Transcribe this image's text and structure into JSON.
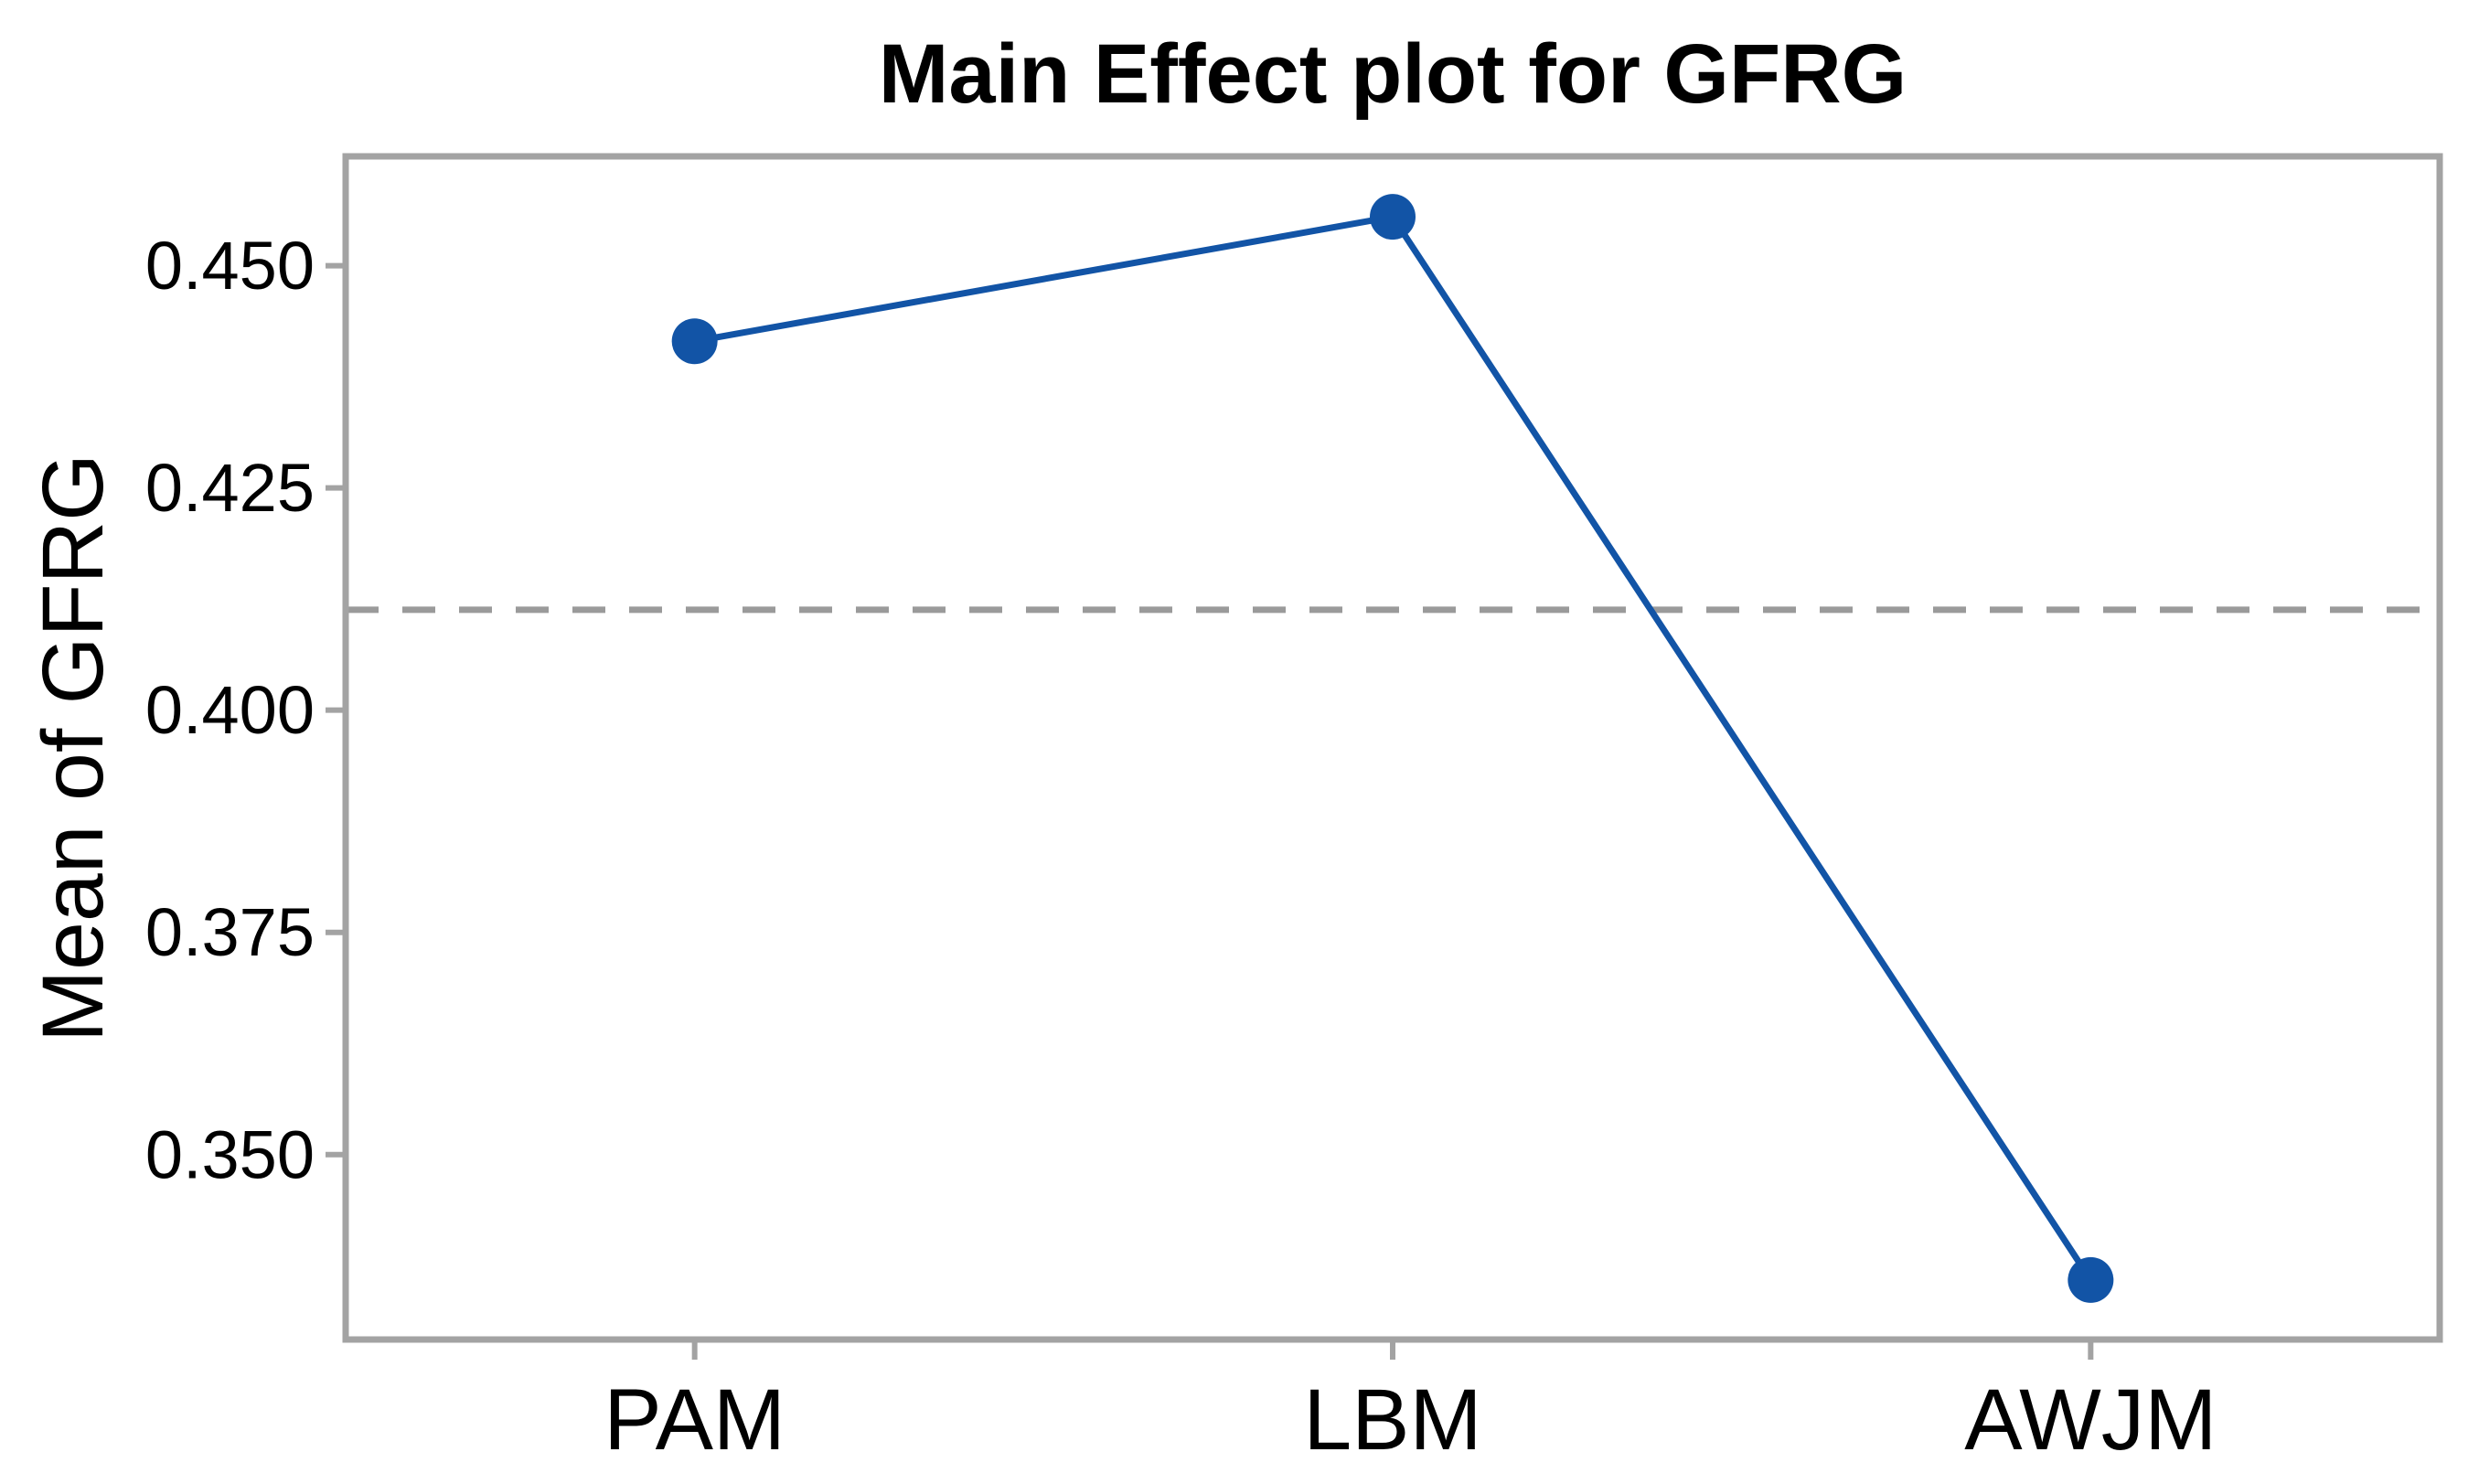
{
  "colors": {
    "series": "#1254a6",
    "frame": "#a3a3a3",
    "mean_line": "#9a9a9a",
    "text": "#000000",
    "background": "#ffffff"
  },
  "chart_data": {
    "type": "line",
    "title": "Main Effect plot for GFRG",
    "xlabel": "",
    "ylabel": "Mean of GFRG",
    "categories": [
      "PAM",
      "LBM",
      "AWJM"
    ],
    "series": [
      {
        "name": "Mean of GFRG",
        "values": [
          0.4415,
          0.4555,
          0.3359
        ]
      }
    ],
    "mean_line": 0.4113,
    "y_ticks": [
      0.45,
      0.425,
      0.4,
      0.375,
      0.35
    ],
    "y_tick_labels": [
      "0.450",
      "0.425",
      "0.400",
      "0.375",
      "0.350"
    ],
    "ylim": [
      0.3292,
      0.4623
    ],
    "grid": false,
    "legend": false,
    "marker": "circle",
    "line_style": "solid",
    "mean_line_style": "dashed"
  }
}
